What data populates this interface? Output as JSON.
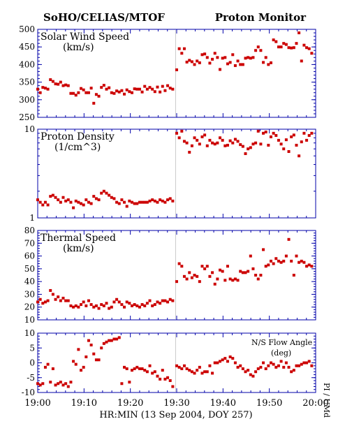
{
  "header": {
    "left": "SoHO/CELIAS/MTOF",
    "right": "Proton Monitor"
  },
  "x_axis": {
    "tick_labels": [
      "19:00",
      "19:10",
      "19:20",
      "19:30",
      "19:40",
      "19:50",
      "20:00"
    ],
    "label": "HR:MIN (13 Sep 2004, DOY 257)"
  },
  "side_credit": "PI / UMd",
  "colors": {
    "points": "#cc0000",
    "axis": "#0000aa",
    "divider": "#cccccc"
  },
  "chart_data": [
    {
      "type": "scatter",
      "title": "Solar Wind Speed",
      "unit": "(km/s)",
      "ylim": [
        250,
        500
      ],
      "y_ticks": [
        250,
        300,
        350,
        400,
        450,
        500
      ],
      "x_range_min": [
        0,
        60
      ],
      "x": [
        0.0,
        0.55,
        1.1,
        1.65,
        2.2,
        2.75,
        3.3,
        3.85,
        4.4,
        4.95,
        5.5,
        6.05,
        6.6,
        7.15,
        7.7,
        8.25,
        8.8,
        9.35,
        9.9,
        10.45,
        11.0,
        11.55,
        12.1,
        12.65,
        13.2,
        13.75,
        14.3,
        14.85,
        15.4,
        15.95,
        16.5,
        17.05,
        17.6,
        18.15,
        18.7,
        19.25,
        19.8,
        20.35,
        20.9,
        21.45,
        22.0,
        22.55,
        23.1,
        23.65,
        24.2,
        24.75,
        25.3,
        25.85,
        26.4,
        26.95,
        27.5,
        28.05,
        28.6,
        29.15,
        30.0,
        30.55,
        31.1,
        31.65,
        32.2,
        32.75,
        33.3,
        33.85,
        34.4,
        34.95,
        35.5,
        36.05,
        36.6,
        37.15,
        37.7,
        38.25,
        38.8,
        39.35,
        39.9,
        40.45,
        41.0,
        41.55,
        42.1,
        42.65,
        43.2,
        43.75,
        44.3,
        44.85,
        45.4,
        45.95,
        46.5,
        47.05,
        47.6,
        48.15,
        48.7,
        49.25,
        49.8,
        50.35,
        50.9,
        51.45,
        52.0,
        52.55,
        53.1,
        53.65,
        54.2,
        54.75,
        55.3,
        55.85,
        56.4,
        56.95,
        57.5,
        58.05,
        58.6,
        59.15
      ],
      "values": [
        330,
        320,
        335,
        333,
        330,
        357,
        352,
        345,
        344,
        350,
        340,
        342,
        340,
        318,
        318,
        313,
        320,
        332,
        328,
        320,
        320,
        333,
        290,
        315,
        310,
        335,
        341,
        330,
        334,
        320,
        318,
        325,
        322,
        326,
        316,
        328,
        323,
        320,
        331,
        330,
        330,
        322,
        338,
        330,
        335,
        330,
        323,
        336,
        322,
        338,
        326,
        340,
        333,
        330,
        385,
        445,
        432,
        445,
        407,
        412,
        408,
        400,
        410,
        405,
        428,
        430,
        420,
        404,
        415,
        432,
        420,
        386,
        418,
        420,
        402,
        406,
        428,
        397,
        410,
        400,
        400,
        418,
        420,
        418,
        420,
        440,
        450,
        440,
        406,
        420,
        400,
        405,
        470,
        465,
        450,
        450,
        460,
        457,
        448,
        447,
        448,
        460,
        490,
        410,
        455,
        448,
        445,
        432
      ]
    },
    {
      "type": "scatter",
      "title": "Proton Density",
      "unit": "(1/cm^3)",
      "yscale": "log",
      "ylim": [
        1,
        10
      ],
      "y_ticks": [
        1,
        10
      ],
      "x_range_min": [
        0,
        60
      ],
      "x": [
        0.0,
        0.55,
        1.1,
        1.65,
        2.2,
        2.75,
        3.3,
        3.85,
        4.4,
        4.95,
        5.5,
        6.05,
        6.6,
        7.15,
        7.7,
        8.25,
        8.8,
        9.35,
        9.9,
        10.45,
        11.0,
        11.55,
        12.1,
        12.65,
        13.2,
        13.75,
        14.3,
        14.85,
        15.4,
        15.95,
        16.5,
        17.05,
        17.6,
        18.15,
        18.7,
        19.25,
        19.8,
        20.35,
        20.9,
        21.45,
        22.0,
        22.55,
        23.1,
        23.65,
        24.2,
        24.75,
        25.3,
        25.85,
        26.4,
        26.95,
        27.5,
        28.05,
        28.6,
        29.15,
        30.0,
        30.55,
        31.1,
        31.65,
        32.2,
        32.75,
        33.3,
        33.85,
        34.4,
        34.95,
        35.5,
        36.05,
        36.6,
        37.15,
        37.7,
        38.25,
        38.8,
        39.35,
        39.9,
        40.45,
        41.0,
        41.55,
        42.1,
        42.65,
        43.2,
        43.75,
        44.3,
        44.85,
        45.4,
        45.95,
        46.5,
        47.05,
        47.6,
        48.15,
        48.7,
        49.25,
        49.8,
        50.35,
        50.9,
        51.45,
        52.0,
        52.55,
        53.1,
        53.65,
        54.2,
        54.75,
        55.3,
        55.85,
        56.4,
        56.95,
        57.5,
        58.05,
        58.6,
        59.15
      ],
      "values": [
        1.6,
        1.5,
        1.4,
        1.5,
        1.4,
        1.75,
        1.8,
        1.7,
        1.6,
        1.5,
        1.7,
        1.55,
        1.6,
        1.5,
        1.3,
        1.55,
        1.5,
        1.45,
        1.4,
        1.6,
        1.5,
        1.45,
        1.75,
        1.65,
        1.6,
        1.9,
        2.0,
        1.9,
        1.8,
        1.7,
        1.65,
        1.5,
        1.45,
        1.6,
        1.5,
        1.35,
        1.55,
        1.5,
        1.45,
        1.45,
        1.5,
        1.5,
        1.5,
        1.5,
        1.55,
        1.6,
        1.55,
        1.5,
        1.6,
        1.55,
        1.5,
        1.6,
        1.65,
        1.55,
        9.0,
        8.0,
        9.5,
        7.3,
        7.0,
        5.5,
        6.5,
        8.0,
        7.5,
        6.8,
        8.2,
        8.6,
        6.5,
        7.5,
        7.0,
        6.8,
        7.0,
        8.0,
        7.5,
        6.5,
        6.6,
        7.4,
        7.0,
        7.7,
        7.3,
        6.7,
        6.4,
        5.3,
        6.0,
        6.2,
        6.8,
        7.0,
        9.5,
        6.8,
        9.0,
        9.3,
        6.6,
        8.2,
        9.0,
        8.5,
        7.5,
        6.8,
        6.0,
        7.6,
        5.6,
        8.2,
        8.6,
        6.6,
        5.0,
        7.2,
        9.0,
        7.5,
        8.5,
        9.0
      ]
    },
    {
      "type": "scatter",
      "title": "Thermal Speed",
      "unit": "(km/s)",
      "ylim": [
        10,
        80
      ],
      "y_ticks": [
        10,
        20,
        30,
        40,
        50,
        60,
        70,
        80
      ],
      "x_range_min": [
        0,
        60
      ],
      "x": [
        0.0,
        0.55,
        1.1,
        1.65,
        2.2,
        2.75,
        3.3,
        3.85,
        4.4,
        4.95,
        5.5,
        6.05,
        6.6,
        7.15,
        7.7,
        8.25,
        8.8,
        9.35,
        9.9,
        10.45,
        11.0,
        11.55,
        12.1,
        12.65,
        13.2,
        13.75,
        14.3,
        14.85,
        15.4,
        15.95,
        16.5,
        17.05,
        17.6,
        18.15,
        18.7,
        19.25,
        19.8,
        20.35,
        20.9,
        21.45,
        22.0,
        22.55,
        23.1,
        23.65,
        24.2,
        24.75,
        25.3,
        25.85,
        26.4,
        26.95,
        27.5,
        28.05,
        28.6,
        29.15,
        30.0,
        30.55,
        31.1,
        31.65,
        32.2,
        32.75,
        33.3,
        33.85,
        34.4,
        34.95,
        35.5,
        36.05,
        36.6,
        37.15,
        37.7,
        38.25,
        38.8,
        39.35,
        39.9,
        40.45,
        41.0,
        41.55,
        42.1,
        42.65,
        43.2,
        43.75,
        44.3,
        44.85,
        45.4,
        45.95,
        46.5,
        47.05,
        47.6,
        48.15,
        48.7,
        49.25,
        49.8,
        50.35,
        50.9,
        51.45,
        52.0,
        52.55,
        53.1,
        53.65,
        54.2,
        54.75,
        55.3,
        55.85,
        56.4,
        56.95,
        57.5,
        58.05,
        58.6,
        59.15
      ],
      "values": [
        24,
        26,
        23,
        24,
        25,
        33,
        30,
        26,
        28,
        25,
        27,
        25,
        25,
        21,
        20,
        21,
        20,
        22,
        24,
        21,
        25,
        22,
        20,
        21,
        19,
        22,
        21,
        23,
        19,
        20,
        24,
        26,
        24,
        22,
        20,
        24,
        23,
        21,
        22,
        21,
        20,
        22,
        21,
        23,
        25,
        21,
        22,
        24,
        23,
        25,
        25,
        24,
        26,
        25,
        40,
        54,
        52,
        44,
        42,
        47,
        43,
        45,
        44,
        40,
        52,
        50,
        52,
        44,
        47,
        38,
        42,
        49,
        48,
        41,
        52,
        42,
        41,
        42,
        41,
        48,
        47,
        47,
        48,
        60,
        50,
        45,
        42,
        45,
        65,
        52,
        53,
        56,
        54,
        58,
        56,
        55,
        56,
        60,
        73,
        56,
        45,
        60,
        55,
        56,
        55,
        52,
        53,
        52
      ]
    },
    {
      "type": "scatter",
      "title": "N/S Flow Angle",
      "unit": "(deg)",
      "ylim": [
        -10,
        10
      ],
      "y_ticks": [
        -10,
        -5,
        0,
        5,
        10
      ],
      "x_range_min": [
        0,
        60
      ],
      "x": [
        0.0,
        0.55,
        1.1,
        1.65,
        2.2,
        2.75,
        3.3,
        3.85,
        4.4,
        4.95,
        5.5,
        6.05,
        6.6,
        7.15,
        7.7,
        8.25,
        8.8,
        9.35,
        9.9,
        10.45,
        11.0,
        11.55,
        12.1,
        12.65,
        13.2,
        13.75,
        14.3,
        14.85,
        15.4,
        15.95,
        16.5,
        17.05,
        17.6,
        18.15,
        18.7,
        19.25,
        19.8,
        20.35,
        20.9,
        21.45,
        22.0,
        22.55,
        23.1,
        23.65,
        24.2,
        24.75,
        25.3,
        25.85,
        26.4,
        26.95,
        27.5,
        28.05,
        28.6,
        29.15,
        30.0,
        30.55,
        31.1,
        31.65,
        32.2,
        32.75,
        33.3,
        33.85,
        34.4,
        34.95,
        35.5,
        36.05,
        36.6,
        37.15,
        37.7,
        38.25,
        38.8,
        39.35,
        39.9,
        40.45,
        41.0,
        41.55,
        42.1,
        42.65,
        43.2,
        43.75,
        44.3,
        44.85,
        45.4,
        45.95,
        46.5,
        47.05,
        47.6,
        48.15,
        48.7,
        49.25,
        49.8,
        50.35,
        50.9,
        51.45,
        52.0,
        52.55,
        53.1,
        53.65,
        54.2,
        54.75,
        55.3,
        55.85,
        56.4,
        56.95,
        57.5,
        58.05,
        58.6,
        59.15
      ],
      "values": [
        -7,
        -7.5,
        -7,
        -1.5,
        -0.5,
        -6.5,
        -2,
        -7.5,
        -7,
        -6.5,
        -7.5,
        -7,
        -8,
        -6.5,
        0.5,
        -0.5,
        4.5,
        -2.5,
        -1.5,
        2,
        7.5,
        6,
        3,
        1,
        1,
        5,
        6.5,
        7,
        7.5,
        7.5,
        8,
        8,
        8.5,
        -7,
        -1.5,
        -2,
        -6.5,
        -2.5,
        -2,
        -1.5,
        -2,
        -2,
        -2.5,
        -3,
        -1,
        -3.5,
        -3,
        -4.5,
        -5.5,
        -2.5,
        -5.5,
        -5,
        -6,
        -8,
        -1,
        -1.5,
        -2,
        -1,
        -2,
        -2.5,
        -3,
        -3.5,
        -2.5,
        -1.5,
        -3.5,
        -3,
        -3,
        -1,
        -3.5,
        0,
        0,
        0.5,
        1,
        1.5,
        0.5,
        2,
        1.5,
        0,
        -1.5,
        -1,
        -2,
        -3,
        -2.5,
        -4,
        -4.5,
        -3,
        -2,
        -1.5,
        0,
        -2,
        -1,
        0,
        -0.5,
        -1.5,
        -1,
        0.5,
        -1.5,
        0,
        -1.5,
        -3,
        -2.5,
        -1,
        -1,
        -0.5,
        0,
        0,
        0.5,
        -1
      ]
    }
  ]
}
